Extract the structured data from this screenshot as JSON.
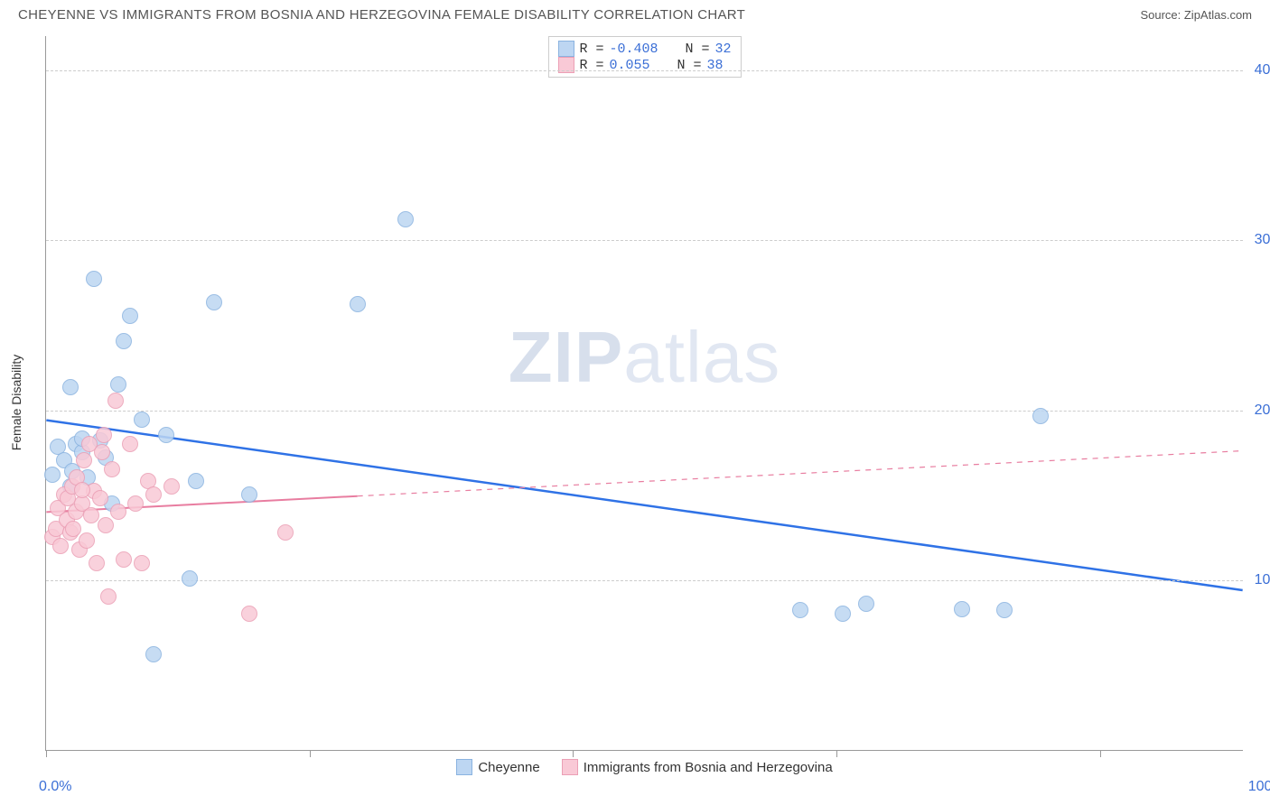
{
  "title": "CHEYENNE VS IMMIGRANTS FROM BOSNIA AND HERZEGOVINA FEMALE DISABILITY CORRELATION CHART",
  "source": "Source: ZipAtlas.com",
  "watermark_a": "ZIP",
  "watermark_b": "atlas",
  "ylabel": "Female Disability",
  "chart": {
    "type": "scatter",
    "xlim": [
      0,
      100
    ],
    "ylim": [
      0,
      42
    ],
    "x_min_label": "0.0%",
    "x_max_label": "100.0%",
    "yticks": [
      10,
      20,
      30,
      40
    ],
    "ytick_labels": [
      "10.0%",
      "20.0%",
      "30.0%",
      "40.0%"
    ],
    "xticks": [
      0,
      22,
      44,
      66,
      88
    ],
    "grid_color": "#cccccc",
    "axis_color": "#999999",
    "tick_label_color": "#3b6fd6",
    "background_color": "#ffffff",
    "point_radius": 9,
    "series": [
      {
        "name": "Cheyenne",
        "color_fill": "#bdd6f2",
        "color_stroke": "#8ab3e0",
        "R": "-0.408",
        "N": "32",
        "trend": {
          "y_at_x0": 19.4,
          "y_at_x100": 9.4,
          "color": "#2f72e6",
          "width": 2.5,
          "dash_from_x": null
        },
        "points": [
          [
            0.5,
            16.2
          ],
          [
            1.0,
            17.8
          ],
          [
            2.0,
            15.5
          ],
          [
            2.0,
            21.3
          ],
          [
            2.5,
            18.0
          ],
          [
            3.0,
            17.5
          ],
          [
            3.0,
            18.3
          ],
          [
            4.0,
            27.7
          ],
          [
            5.5,
            14.5
          ],
          [
            6.0,
            21.5
          ],
          [
            6.5,
            24.0
          ],
          [
            7.0,
            25.5
          ],
          [
            8.0,
            19.4
          ],
          [
            9.0,
            5.6
          ],
          [
            12.0,
            10.1
          ],
          [
            12.5,
            15.8
          ],
          [
            14.0,
            26.3
          ],
          [
            17.0,
            15.0
          ],
          [
            26.0,
            26.2
          ],
          [
            30.0,
            31.2
          ],
          [
            63.0,
            8.2
          ],
          [
            66.5,
            8.0
          ],
          [
            68.5,
            8.6
          ],
          [
            76.5,
            8.3
          ],
          [
            80.0,
            8.2
          ],
          [
            83.0,
            19.6
          ],
          [
            1.5,
            17.0
          ],
          [
            3.5,
            16.0
          ],
          [
            4.5,
            18.2
          ],
          [
            2.2,
            16.4
          ],
          [
            5.0,
            17.2
          ],
          [
            10.0,
            18.5
          ]
        ]
      },
      {
        "name": "Immigrants from Bosnia and Herzegovina",
        "color_fill": "#f9c9d6",
        "color_stroke": "#eb9fb5",
        "R": "0.055",
        "N": "38",
        "trend": {
          "y_at_x0": 14.0,
          "y_at_x100": 17.6,
          "color": "#e87da0",
          "width": 2,
          "dash_from_x": 26
        },
        "points": [
          [
            0.5,
            12.5
          ],
          [
            0.8,
            13.0
          ],
          [
            1.0,
            14.2
          ],
          [
            1.2,
            12.0
          ],
          [
            1.5,
            15.0
          ],
          [
            1.7,
            13.5
          ],
          [
            1.8,
            14.8
          ],
          [
            2.0,
            12.8
          ],
          [
            2.2,
            15.5
          ],
          [
            2.3,
            13.0
          ],
          [
            2.5,
            14.0
          ],
          [
            2.6,
            16.0
          ],
          [
            2.8,
            11.8
          ],
          [
            3.0,
            14.5
          ],
          [
            3.2,
            17.0
          ],
          [
            3.4,
            12.3
          ],
          [
            3.6,
            18.0
          ],
          [
            3.8,
            13.8
          ],
          [
            4.0,
            15.2
          ],
          [
            4.2,
            11.0
          ],
          [
            4.5,
            14.8
          ],
          [
            4.7,
            17.5
          ],
          [
            4.8,
            18.5
          ],
          [
            5.0,
            13.2
          ],
          [
            5.2,
            9.0
          ],
          [
            5.5,
            16.5
          ],
          [
            5.8,
            20.5
          ],
          [
            6.0,
            14.0
          ],
          [
            6.5,
            11.2
          ],
          [
            7.0,
            18.0
          ],
          [
            7.5,
            14.5
          ],
          [
            8.0,
            11.0
          ],
          [
            8.5,
            15.8
          ],
          [
            9.0,
            15.0
          ],
          [
            10.5,
            15.5
          ],
          [
            17.0,
            8.0
          ],
          [
            20.0,
            12.8
          ],
          [
            3.0,
            15.3
          ]
        ]
      }
    ]
  }
}
